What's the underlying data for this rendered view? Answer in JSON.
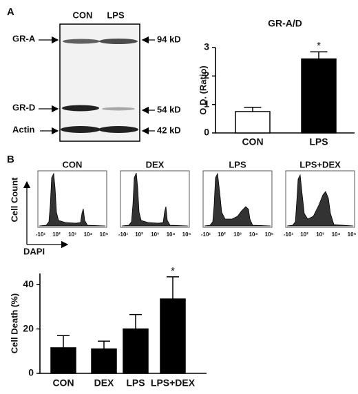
{
  "panels": [
    "A",
    "B"
  ],
  "blot": {
    "lanes": [
      "CON",
      "LPS"
    ],
    "bands": [
      "GR-A",
      "GR-D",
      "Actin"
    ],
    "markers": [
      "94 kD",
      "54 kD",
      "42 kD"
    ]
  },
  "flow": {
    "titles": [
      "CON",
      "DEX",
      "LPS",
      "LPS+DEX"
    ],
    "ylabel": "Cell Count",
    "xlabel": "DAPI",
    "xtick_labels": [
      "-10¹",
      "10²",
      "10³",
      "10⁴",
      "10⁵"
    ]
  },
  "chart_data": [
    {
      "type": "bar",
      "title": "GR-A/D",
      "ylabel": "O.D. (Ratio)",
      "categories": [
        "CON",
        "LPS"
      ],
      "values": [
        0.75,
        2.6
      ],
      "errors": [
        0.15,
        0.25
      ],
      "colors": [
        "#ffffff",
        "#000000"
      ],
      "ylim": [
        0,
        3
      ],
      "yticks": [
        0,
        1,
        2,
        3
      ],
      "annotation": "*"
    },
    {
      "type": "bar",
      "ylabel": "Cell Death (%)",
      "categories": [
        "CON",
        "DEX",
        "LPS",
        "LPS+DEX"
      ],
      "values": [
        11.5,
        11,
        20,
        33.5
      ],
      "errors": [
        5.5,
        3.5,
        6.5,
        10
      ],
      "colors": [
        "#000000",
        "#000000",
        "#000000",
        "#000000"
      ],
      "ylim": [
        0,
        45
      ],
      "yticks": [
        0,
        20,
        40
      ],
      "annotation": "*"
    }
  ]
}
